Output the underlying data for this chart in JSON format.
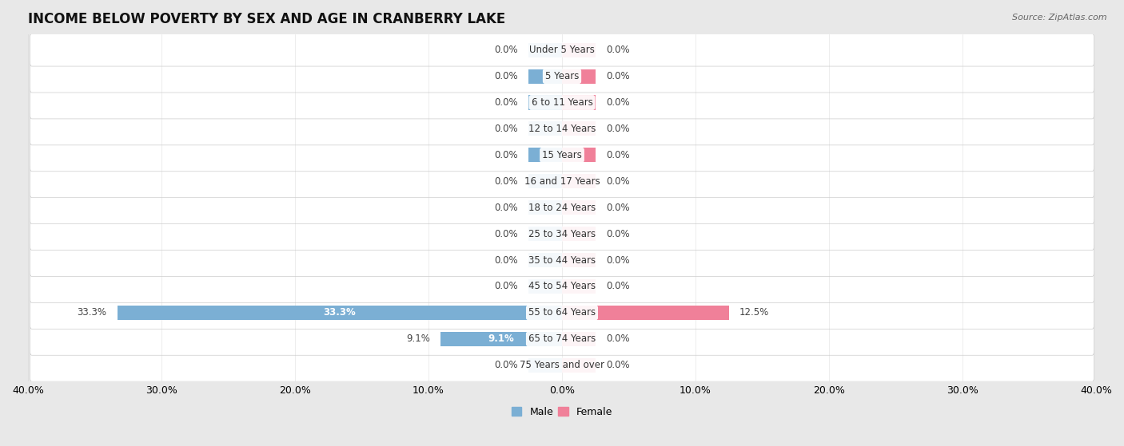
{
  "title": "INCOME BELOW POVERTY BY SEX AND AGE IN CRANBERRY LAKE",
  "source": "Source: ZipAtlas.com",
  "categories": [
    "Under 5 Years",
    "5 Years",
    "6 to 11 Years",
    "12 to 14 Years",
    "15 Years",
    "16 and 17 Years",
    "18 to 24 Years",
    "25 to 34 Years",
    "35 to 44 Years",
    "45 to 54 Years",
    "55 to 64 Years",
    "65 to 74 Years",
    "75 Years and over"
  ],
  "male_values": [
    0.0,
    0.0,
    0.0,
    0.0,
    0.0,
    0.0,
    0.0,
    0.0,
    0.0,
    0.0,
    33.3,
    9.1,
    0.0
  ],
  "female_values": [
    0.0,
    0.0,
    0.0,
    0.0,
    0.0,
    0.0,
    0.0,
    0.0,
    0.0,
    0.0,
    12.5,
    0.0,
    0.0
  ],
  "male_color": "#7bafd4",
  "female_color": "#f08099",
  "male_label": "Male",
  "female_label": "Female",
  "xlim": 40.0,
  "bar_height": 0.55,
  "stub_size": 2.5,
  "background_color": "#e8e8e8",
  "row_bg_light": "#f0f0f0",
  "row_bg_dark": "#e2e2e2",
  "title_fontsize": 12,
  "label_fontsize": 8.5,
  "tick_fontsize": 9,
  "category_fontsize": 8.5
}
